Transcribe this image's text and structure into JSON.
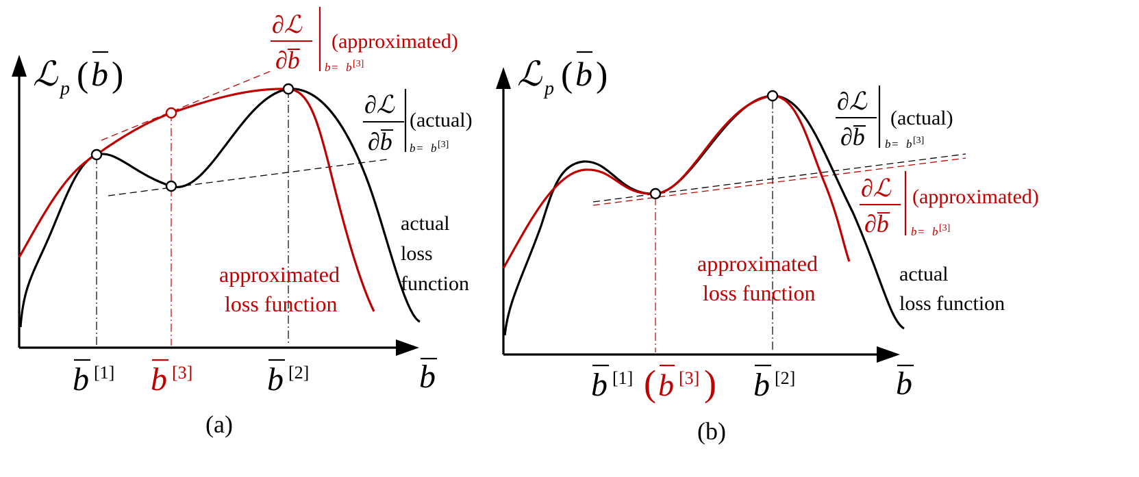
{
  "colors": {
    "actual": "#000000",
    "approx": "#c00000"
  },
  "symbols": {
    "loss": "ℒ",
    "loss_sub": "p",
    "b": "b",
    "partial": "∂",
    "partial_L": "∂ℒ",
    "partial_b": "∂b",
    "eval_sub_lhs": "b",
    "eval_sub_eq": " = ",
    "eval_sub_rhs": "b",
    "sup1": "[1]",
    "sup2": "[2]",
    "sup3": "[3]",
    "paren_open": "(",
    "paren_close": ")"
  },
  "panel_a": {
    "caption": "(a)",
    "grad_actual_tag": "(actual)",
    "grad_approx_tag": "(approximated)",
    "actual_label": [
      "actual",
      "loss",
      "function"
    ],
    "approx_label": [
      "approximated",
      "loss function"
    ]
  },
  "panel_b": {
    "caption": "(b)",
    "grad_actual_tag": "(actual)",
    "grad_approx_tag": "(approximated)",
    "actual_label": [
      "actual",
      "loss function"
    ],
    "approx_label": [
      "approximated",
      "loss function"
    ]
  }
}
